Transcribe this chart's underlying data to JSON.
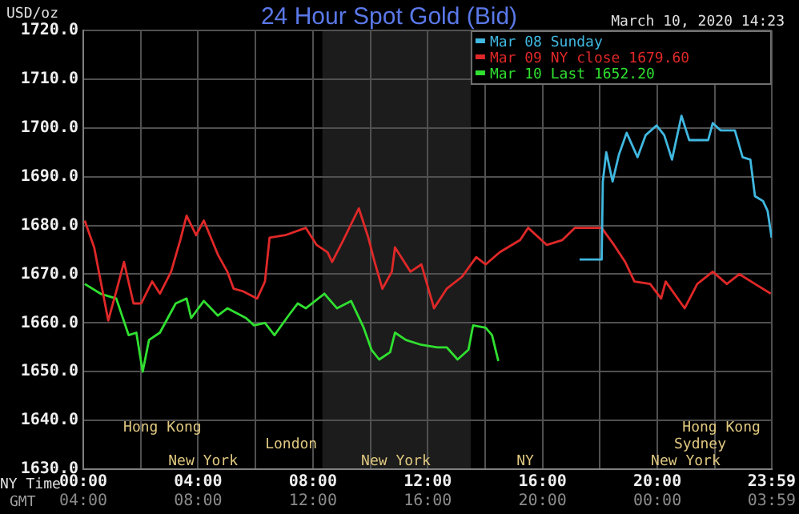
{
  "chart_data": {
    "type": "line",
    "title": "24 Hour Spot Gold (Bid)",
    "subtitle": "March 10, 2020 14:23",
    "ylabel": "USD/oz",
    "xlabel": "NY Time",
    "x2label": "GMT",
    "xlim": [
      0,
      23.983
    ],
    "xticks": [
      {
        "value": 0,
        "label": "00:00"
      },
      {
        "value": 2,
        "label": null
      },
      {
        "value": 4,
        "label": "04:00"
      },
      {
        "value": 6,
        "label": null
      },
      {
        "value": 8,
        "label": "08:00"
      },
      {
        "value": 10,
        "label": null
      },
      {
        "value": 12,
        "label": "12:00"
      },
      {
        "value": 14,
        "label": null
      },
      {
        "value": 16,
        "label": "16:00"
      },
      {
        "value": 18,
        "label": null
      },
      {
        "value": 20,
        "label": "20:00"
      },
      {
        "value": 22,
        "label": null
      },
      {
        "value": 23.983,
        "label": "23:59"
      }
    ],
    "x2lim": [
      "2020-03-10T04:00",
      "2020-03-11T03:59"
    ],
    "x2ticks": [
      {
        "value": "2020-03-10T04:00",
        "label": "04:00"
      },
      {
        "value": "2020-03-10T08:00",
        "label": "08:00"
      },
      {
        "value": "2020-03-10T12:00",
        "label": "12:00"
      },
      {
        "value": "2020-03-10T16:00",
        "label": "16:00"
      },
      {
        "value": "2020-03-10T20:00",
        "label": "20:00"
      },
      {
        "value": "2020-03-11T00:00",
        "label": "00:00"
      },
      {
        "value": "2020-03-11T03:59",
        "label": "03:59"
      }
    ],
    "ylim": [
      1630,
      1720
    ],
    "yticks": [
      {
        "value": 1630,
        "label": "1630.0"
      },
      {
        "value": 1640,
        "label": "1640.0"
      },
      {
        "value": 1650,
        "label": "1650.0"
      },
      {
        "value": 1660,
        "label": "1660.0"
      },
      {
        "value": 1670,
        "label": "1670.0"
      },
      {
        "value": 1680,
        "label": "1680.0"
      },
      {
        "value": 1690,
        "label": "1690.0"
      },
      {
        "value": 1700,
        "label": "1700.0"
      },
      {
        "value": 1710,
        "label": "1710.0"
      },
      {
        "value": 1720,
        "label": "1720.0"
      }
    ],
    "grid": true,
    "legend": "top right",
    "marker": "none",
    "line_style": "solid",
    "series": [
      {
        "name": "Mar 08 Sunday",
        "color": "#40b8e0",
        "x": [
          17.29,
          18.06,
          18.1,
          18.22,
          18.44,
          18.66,
          18.93,
          19.31,
          19.59,
          19.97,
          20.24,
          20.51,
          20.84,
          21.11,
          21.77,
          21.93,
          22.2,
          22.7,
          22.97,
          23.24,
          23.4,
          23.68,
          23.84,
          23.98
        ],
        "values": [
          1673,
          1673,
          1689,
          1695,
          1689,
          1694.5,
          1699,
          1694,
          1698.5,
          1700.5,
          1698.5,
          1693.5,
          1702.5,
          1697.5,
          1697.5,
          1701,
          1699.5,
          1699.5,
          1694,
          1693.5,
          1686,
          1685,
          1683,
          1677.5
        ]
      },
      {
        "name": "Mar 09 NY close 1679.60",
        "color": "#e02828",
        "x": [
          0.05,
          0.38,
          0.87,
          1.15,
          1.42,
          1.75,
          2.02,
          2.4,
          2.67,
          3.06,
          3.38,
          3.6,
          3.93,
          4.2,
          4.69,
          5.02,
          5.24,
          5.56,
          6.06,
          6.33,
          6.49,
          7.04,
          7.75,
          8.13,
          8.51,
          8.67,
          9.06,
          9.6,
          9.93,
          10.15,
          10.42,
          10.75,
          10.86,
          11.4,
          11.78,
          12.22,
          12.66,
          13.2,
          13.69,
          14.02,
          14.51,
          15.22,
          15.5,
          16.15,
          16.69,
          17.13,
          18.06,
          18.49,
          18.88,
          19.2,
          19.75,
          20.13,
          20.29,
          20.95,
          21.39,
          21.93,
          22.42,
          22.86,
          23.4,
          23.95
        ],
        "values": [
          1681,
          1675.5,
          1660.5,
          1666.5,
          1672.5,
          1664,
          1664,
          1668.5,
          1666,
          1670.5,
          1677,
          1682,
          1678,
          1681,
          1674,
          1670.5,
          1667,
          1666.5,
          1665,
          1668.5,
          1677.5,
          1678,
          1679.5,
          1676,
          1674.5,
          1672.5,
          1677,
          1683.5,
          1677.5,
          1672.5,
          1667,
          1670.5,
          1675.5,
          1670.5,
          1672,
          1663,
          1667,
          1669.5,
          1673.5,
          1672,
          1674.5,
          1677,
          1679.5,
          1676,
          1677,
          1679.5,
          1679.5,
          1676,
          1672.5,
          1668.5,
          1668,
          1665,
          1668.5,
          1663,
          1668,
          1670.5,
          1668,
          1670,
          1668,
          1666
        ]
      },
      {
        "name": "Mar 10 Last 1652.20",
        "color": "#30e030",
        "x": [
          0.05,
          0.6,
          1.15,
          1.58,
          1.85,
          2.07,
          2.29,
          2.67,
          3.22,
          3.6,
          3.76,
          4.2,
          4.69,
          5.02,
          5.67,
          5.95,
          6.33,
          6.66,
          7.15,
          7.47,
          7.75,
          8.4,
          8.84,
          9.33,
          9.77,
          10.04,
          10.31,
          10.69,
          10.86,
          11.24,
          11.78,
          12.33,
          12.66,
          13.04,
          13.42,
          13.58,
          14.02,
          14.24,
          14.46
        ],
        "values": [
          1668,
          1666,
          1665,
          1657.5,
          1658,
          1650,
          1656.5,
          1658,
          1664,
          1665,
          1661,
          1664.5,
          1661.5,
          1663,
          1661,
          1659.5,
          1660,
          1657.5,
          1661.5,
          1664,
          1663,
          1666,
          1663,
          1664.5,
          1659,
          1654.5,
          1652.5,
          1654,
          1658,
          1656.5,
          1655.5,
          1655,
          1655,
          1652.5,
          1654.5,
          1659.5,
          1659,
          1657.5,
          1652.2
        ]
      }
    ],
    "bands": [
      {
        "axis": "x",
        "from": 8.33,
        "to": 13.5,
        "color": "#1c1c1c"
      }
    ],
    "annotations": [
      "New York",
      "New York",
      "NY",
      "New York",
      "London",
      "Sydney",
      "Hong Kong",
      "Hong Kong"
    ]
  }
}
